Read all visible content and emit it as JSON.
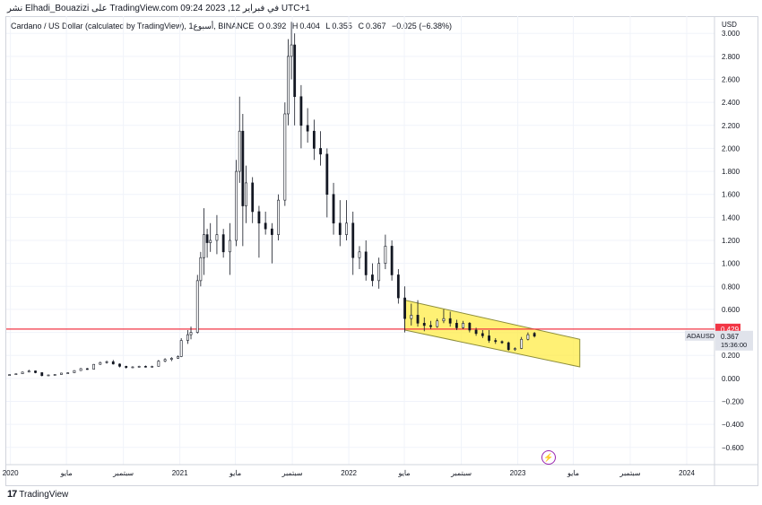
{
  "header": {
    "publish_text": "نشر Elhadi_Bouazizi على TradingView.com في فبراير 12, 2023 09:24 UTC+1"
  },
  "legend": {
    "symbol": "Cardano / US Dollar (calculated by TradingView), أسبوع1, BINANCE",
    "open_label": "O",
    "open": "0.392",
    "high_label": "H",
    "high": "0.404",
    "low_label": "L",
    "low": "0.355",
    "close_label": "C",
    "close": "0.367",
    "change": "−0.025 (−6.38%)"
  },
  "price_axis": {
    "currency": "USD",
    "ticks": [
      "3.000",
      "2.800",
      "2.600",
      "2.400",
      "2.200",
      "2.000",
      "1.800",
      "1.600",
      "1.400",
      "1.200",
      "1.000",
      "0.800",
      "0.600",
      "0.400",
      "0.200",
      "0.000",
      "−0.200",
      "−0.400",
      "−0.600"
    ]
  },
  "time_axis": {
    "ticks": [
      "2020",
      "مايو",
      "سبتمبر",
      "2021",
      "مايو",
      "سبتمبر",
      "2022",
      "مايو",
      "سبتمبر",
      "2023",
      "مايو",
      "سبتمبر",
      "2024"
    ]
  },
  "markers": {
    "level_label": "0.429",
    "ticker_label": "ADAUSD",
    "last_price": "0.367",
    "countdown": "15:36:00"
  },
  "footer": {
    "logo_text": "TradingView",
    "logo_mark": "17"
  },
  "colors": {
    "up": "#131722",
    "down": "#131722",
    "level_line": "#f23645",
    "channel_fill": "#ffeb3b",
    "channel_stroke": "#8d8d3a",
    "grid": "#f0f3fa",
    "event_icon": "#9c27b0"
  },
  "icons": {
    "event": "lightning-icon"
  },
  "chart_data": {
    "type": "candlestick",
    "title": "Cardano / US Dollar (calculated by TradingView), أسبوع1, BINANCE",
    "ylim": [
      -0.75,
      3.15
    ],
    "ytick_values": [
      3.0,
      2.8,
      2.6,
      2.4,
      2.2,
      2.0,
      1.8,
      1.6,
      1.4,
      1.2,
      1.0,
      0.8,
      0.6,
      0.4,
      0.2,
      0.0,
      -0.2,
      -0.4,
      -0.6
    ],
    "x_start": "2019-12-23",
    "x_end": "2024-03-01",
    "xtick_dates": [
      "2020-01-01",
      "2020-05-01",
      "2020-09-01",
      "2021-01-01",
      "2021-05-01",
      "2021-09-01",
      "2022-01-01",
      "2022-05-01",
      "2022-09-01",
      "2023-01-01",
      "2023-05-01",
      "2023-09-01",
      "2024-01-01"
    ],
    "horizontal_level": 0.429,
    "channel": {
      "upper": [
        [
          "2022-05-02",
          0.68
        ],
        [
          "2023-05-15",
          0.34
        ]
      ],
      "lower": [
        [
          "2022-05-02",
          0.42
        ],
        [
          "2023-05-15",
          0.1
        ]
      ]
    },
    "candles": [
      [
        "2019-12-30",
        0.032,
        0.034,
        0.03,
        0.033
      ],
      [
        "2020-01-13",
        0.033,
        0.041,
        0.032,
        0.04
      ],
      [
        "2020-01-27",
        0.04,
        0.058,
        0.039,
        0.055
      ],
      [
        "2020-02-10",
        0.055,
        0.075,
        0.052,
        0.065
      ],
      [
        "2020-02-24",
        0.065,
        0.068,
        0.045,
        0.05
      ],
      [
        "2020-03-09",
        0.05,
        0.053,
        0.018,
        0.024
      ],
      [
        "2020-03-23",
        0.024,
        0.032,
        0.022,
        0.03
      ],
      [
        "2020-04-06",
        0.03,
        0.036,
        0.029,
        0.034
      ],
      [
        "2020-04-20",
        0.034,
        0.048,
        0.033,
        0.046
      ],
      [
        "2020-05-04",
        0.046,
        0.052,
        0.044,
        0.049
      ],
      [
        "2020-05-18",
        0.049,
        0.07,
        0.048,
        0.068
      ],
      [
        "2020-06-01",
        0.068,
        0.09,
        0.066,
        0.085
      ],
      [
        "2020-06-15",
        0.085,
        0.09,
        0.075,
        0.08
      ],
      [
        "2020-06-29",
        0.08,
        0.125,
        0.079,
        0.122
      ],
      [
        "2020-07-13",
        0.122,
        0.145,
        0.118,
        0.138
      ],
      [
        "2020-07-27",
        0.138,
        0.155,
        0.128,
        0.145
      ],
      [
        "2020-08-10",
        0.145,
        0.16,
        0.12,
        0.125
      ],
      [
        "2020-08-24",
        0.125,
        0.13,
        0.095,
        0.105
      ],
      [
        "2020-09-07",
        0.105,
        0.11,
        0.085,
        0.095
      ],
      [
        "2020-09-21",
        0.095,
        0.105,
        0.09,
        0.1
      ],
      [
        "2020-10-05",
        0.1,
        0.11,
        0.095,
        0.105
      ],
      [
        "2020-10-19",
        0.105,
        0.112,
        0.095,
        0.098
      ],
      [
        "2020-11-02",
        0.098,
        0.11,
        0.095,
        0.105
      ],
      [
        "2020-11-16",
        0.105,
        0.16,
        0.103,
        0.15
      ],
      [
        "2020-11-30",
        0.15,
        0.175,
        0.14,
        0.165
      ],
      [
        "2020-12-14",
        0.165,
        0.185,
        0.15,
        0.175
      ],
      [
        "2020-12-28",
        0.175,
        0.2,
        0.17,
        0.19
      ],
      [
        "2021-01-04",
        0.19,
        0.35,
        0.185,
        0.33
      ],
      [
        "2021-01-18",
        0.33,
        0.42,
        0.3,
        0.38
      ],
      [
        "2021-01-25",
        0.38,
        0.45,
        0.34,
        0.4
      ],
      [
        "2021-02-08",
        0.4,
        0.9,
        0.39,
        0.85
      ],
      [
        "2021-02-15",
        0.85,
        1.1,
        0.8,
        1.05
      ],
      [
        "2021-02-22",
        1.05,
        1.48,
        0.9,
        1.25
      ],
      [
        "2021-03-01",
        1.25,
        1.3,
        1.05,
        1.18
      ],
      [
        "2021-03-08",
        1.18,
        1.35,
        1.1,
        1.2
      ],
      [
        "2021-03-22",
        1.2,
        1.42,
        1.08,
        1.25
      ],
      [
        "2021-04-05",
        1.25,
        1.3,
        1.05,
        1.1
      ],
      [
        "2021-04-19",
        1.1,
        1.35,
        0.9,
        1.2
      ],
      [
        "2021-05-03",
        1.2,
        1.9,
        1.15,
        1.8
      ],
      [
        "2021-05-10",
        1.8,
        2.45,
        1.7,
        2.15
      ],
      [
        "2021-05-17",
        2.15,
        2.3,
        1.15,
        1.5
      ],
      [
        "2021-05-24",
        1.5,
        1.85,
        1.35,
        1.7
      ],
      [
        "2021-06-07",
        1.7,
        1.75,
        1.35,
        1.45
      ],
      [
        "2021-06-21",
        1.45,
        1.5,
        1.05,
        1.35
      ],
      [
        "2021-07-05",
        1.35,
        1.45,
        1.25,
        1.3
      ],
      [
        "2021-07-19",
        1.3,
        1.35,
        1.0,
        1.25
      ],
      [
        "2021-08-02",
        1.25,
        1.6,
        1.2,
        1.55
      ],
      [
        "2021-08-16",
        1.55,
        2.4,
        1.5,
        2.3
      ],
      [
        "2021-08-23",
        2.3,
        2.95,
        2.2,
        2.8
      ],
      [
        "2021-08-30",
        2.8,
        3.1,
        2.6,
        2.9
      ],
      [
        "2021-09-06",
        2.9,
        3.0,
        2.2,
        2.45
      ],
      [
        "2021-09-20",
        2.45,
        2.55,
        2.0,
        2.2
      ],
      [
        "2021-10-04",
        2.2,
        2.35,
        2.05,
        2.15
      ],
      [
        "2021-10-18",
        2.15,
        2.25,
        1.9,
        2.0
      ],
      [
        "2021-11-01",
        2.0,
        2.15,
        1.85,
        1.95
      ],
      [
        "2021-11-15",
        1.95,
        2.0,
        1.4,
        1.6
      ],
      [
        "2021-11-29",
        1.6,
        1.7,
        1.25,
        1.35
      ],
      [
        "2021-12-13",
        1.35,
        1.55,
        1.15,
        1.25
      ],
      [
        "2021-12-27",
        1.25,
        1.55,
        1.2,
        1.35
      ],
      [
        "2022-01-10",
        1.35,
        1.45,
        0.9,
        1.05
      ],
      [
        "2022-01-24",
        1.05,
        1.15,
        0.95,
        1.1
      ],
      [
        "2022-02-07",
        1.1,
        1.2,
        0.85,
        0.9
      ],
      [
        "2022-02-21",
        0.9,
        1.0,
        0.8,
        0.85
      ],
      [
        "2022-03-07",
        0.85,
        1.05,
        0.78,
        1.0
      ],
      [
        "2022-03-21",
        1.0,
        1.25,
        0.95,
        1.15
      ],
      [
        "2022-04-04",
        1.15,
        1.2,
        0.85,
        0.9
      ],
      [
        "2022-04-18",
        0.9,
        0.95,
        0.65,
        0.7
      ],
      [
        "2022-05-02",
        0.7,
        0.8,
        0.4,
        0.52
      ],
      [
        "2022-05-16",
        0.52,
        0.65,
        0.46,
        0.55
      ],
      [
        "2022-05-30",
        0.55,
        0.68,
        0.45,
        0.48
      ],
      [
        "2022-06-13",
        0.48,
        0.53,
        0.41,
        0.46
      ],
      [
        "2022-06-27",
        0.46,
        0.5,
        0.43,
        0.45
      ],
      [
        "2022-07-11",
        0.45,
        0.52,
        0.44,
        0.5
      ],
      [
        "2022-07-25",
        0.5,
        0.6,
        0.48,
        0.52
      ],
      [
        "2022-08-08",
        0.52,
        0.58,
        0.45,
        0.48
      ],
      [
        "2022-08-22",
        0.48,
        0.51,
        0.42,
        0.44
      ],
      [
        "2022-09-05",
        0.44,
        0.5,
        0.43,
        0.48
      ],
      [
        "2022-09-19",
        0.48,
        0.49,
        0.4,
        0.42
      ],
      [
        "2022-10-03",
        0.42,
        0.44,
        0.37,
        0.39
      ],
      [
        "2022-10-17",
        0.39,
        0.42,
        0.35,
        0.37
      ],
      [
        "2022-10-31",
        0.37,
        0.42,
        0.31,
        0.33
      ],
      [
        "2022-11-14",
        0.33,
        0.35,
        0.3,
        0.32
      ],
      [
        "2022-11-28",
        0.32,
        0.33,
        0.3,
        0.31
      ],
      [
        "2022-12-12",
        0.31,
        0.32,
        0.24,
        0.25
      ],
      [
        "2022-12-26",
        0.25,
        0.27,
        0.24,
        0.26
      ],
      [
        "2023-01-09",
        0.26,
        0.36,
        0.255,
        0.34
      ],
      [
        "2023-01-23",
        0.34,
        0.4,
        0.33,
        0.38
      ],
      [
        "2023-02-06",
        0.392,
        0.404,
        0.355,
        0.367
      ]
    ]
  }
}
